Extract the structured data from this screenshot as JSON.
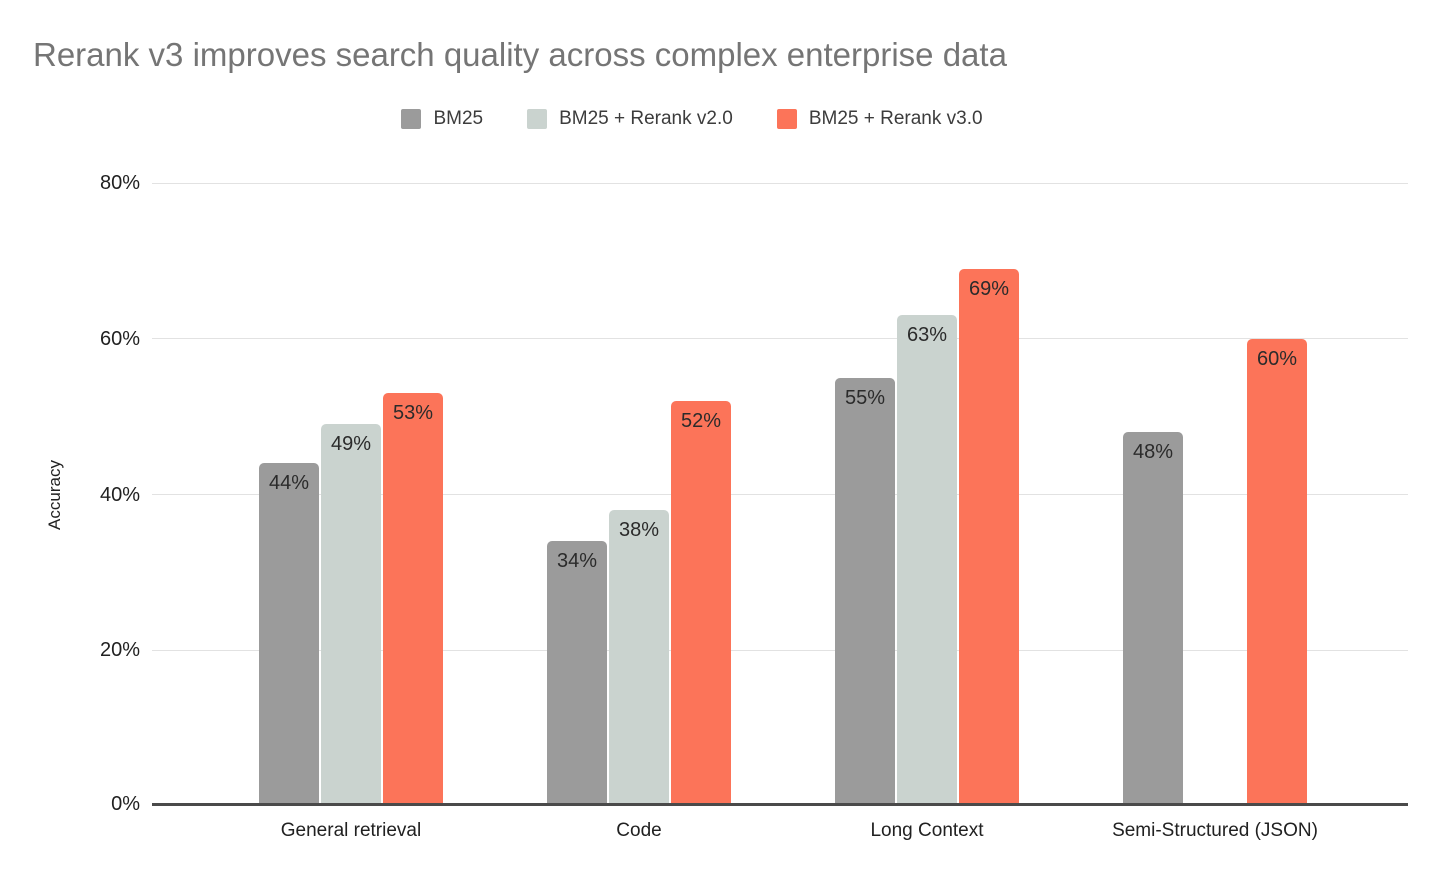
{
  "chart_data": {
    "type": "bar",
    "title": "Rerank v3 improves search quality across complex enterprise data",
    "categories": [
      "General retrieval",
      "Code",
      "Long Context",
      "Semi-Structured (JSON)"
    ],
    "series": [
      {
        "name": "BM25",
        "color": "#9b9b9b",
        "values": [
          44,
          34,
          55,
          48
        ]
      },
      {
        "name": "BM25 + Rerank v2.0",
        "color": "#cad3cf",
        "values": [
          49,
          38,
          63,
          null
        ]
      },
      {
        "name": "BM25 + Rerank v3.0",
        "color": "#fc7459",
        "values": [
          53,
          52,
          69,
          60
        ]
      }
    ],
    "value_suffix": "%",
    "ylabel": "Accuracy",
    "yticks": [
      0,
      20,
      40,
      60,
      80
    ],
    "ytick_labels": [
      "0%",
      "20%",
      "40%",
      "60%",
      "80%"
    ],
    "ylim": [
      0,
      80
    ],
    "grid": true,
    "legend_position": "top"
  },
  "colors": {
    "background": "#ffffff",
    "title_text": "#757575",
    "axis_text": "#212121",
    "value_label_text": "#2b2b2b",
    "legend_text": "#3c3c3c",
    "gridline": "#e2e2e2",
    "axis_line": "#4a4a4a"
  }
}
